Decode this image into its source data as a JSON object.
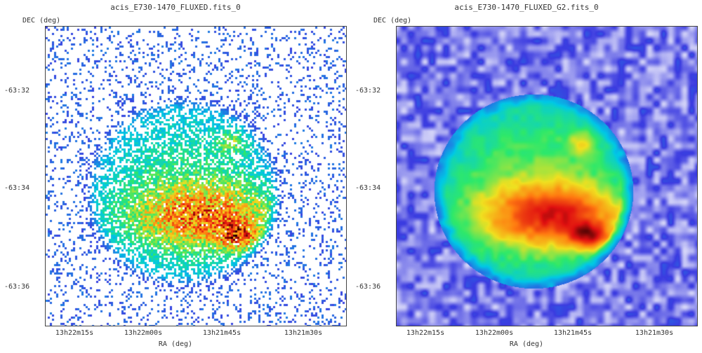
{
  "panels": [
    {
      "title": "acis_E730-1470_FLUXED.fits_0",
      "y_axis_label": "DEC (deg)",
      "x_axis_label": "RA (deg)",
      "y_ticks": [
        "-63:32",
        "-63:34",
        "-63:36"
      ],
      "x_ticks": [
        "13h22m15s",
        "13h22m00s",
        "13h21m45s",
        "13h21m30s"
      ],
      "style": "binned-counts"
    },
    {
      "title": "acis_E730-1470_FLUXED_G2.fits_0",
      "y_axis_label": "DEC (deg)",
      "x_axis_label": "RA (deg)",
      "y_ticks": [
        "-63:32",
        "-63:34",
        "-63:36"
      ],
      "x_ticks": [
        "13h22m15s",
        "13h22m00s",
        "13h21m45s",
        "13h21m30s"
      ],
      "style": "gaussian-smoothed"
    }
  ],
  "colormap": [
    "#ffffff",
    "#3b3be0",
    "#00c8e6",
    "#2ee86a",
    "#f0e020",
    "#ff7a10",
    "#e01010",
    "#200000"
  ]
}
